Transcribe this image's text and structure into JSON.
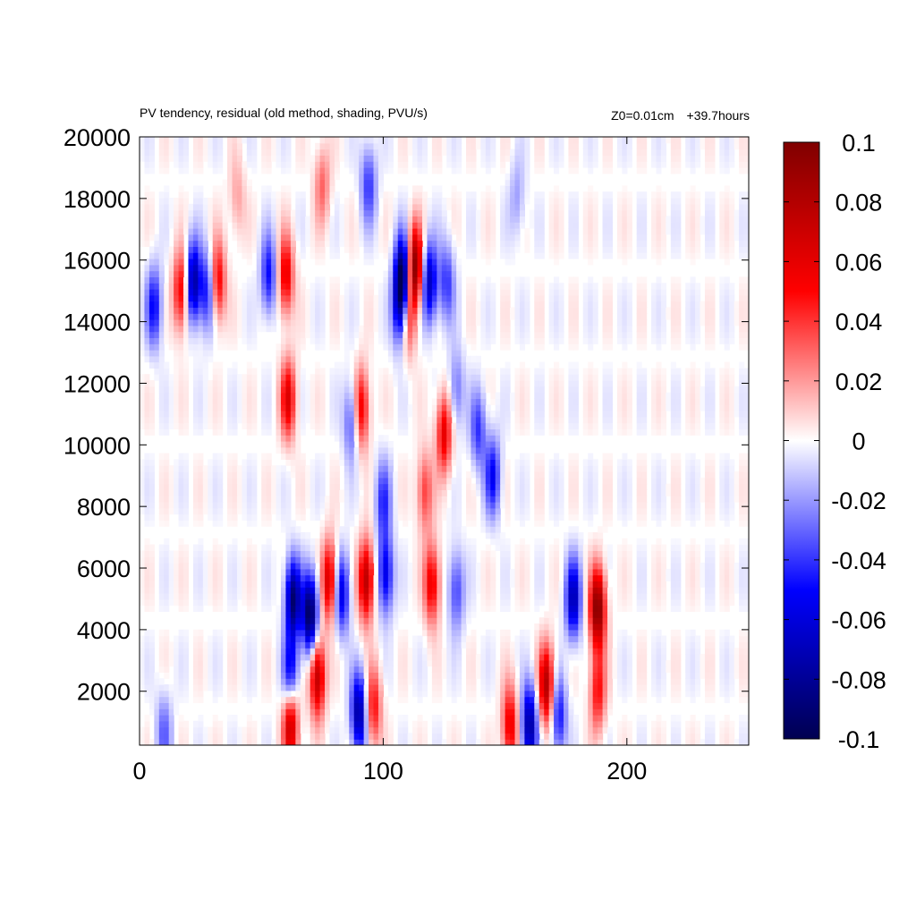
{
  "title": "PV tendency, residual (old method, shading, PVU/s)",
  "annotation_z0": "Z0=0.01cm",
  "annotation_time": "+39.7hours",
  "chart_data": {
    "type": "heatmap",
    "title": "PV tendency, residual (old method, shading, PVU/s)",
    "xlabel": "",
    "ylabel": "",
    "xlim": [
      0,
      250
    ],
    "ylim": [
      250,
      20000
    ],
    "x_ticks": [
      0,
      100,
      200
    ],
    "x_tick_labels": [
      "0",
      "100",
      "200"
    ],
    "y_ticks": [
      2000,
      4000,
      6000,
      8000,
      10000,
      12000,
      14000,
      16000,
      18000,
      20000
    ],
    "y_tick_labels": [
      "2000",
      "4000",
      "6000",
      "8000",
      "10000",
      "12000",
      "14000",
      "16000",
      "18000",
      "20000"
    ],
    "colorbar": {
      "min": -0.1,
      "max": 0.1,
      "ticks": [
        0.1,
        0.08,
        0.06,
        0.04,
        0.02,
        0,
        -0.02,
        -0.04,
        -0.06,
        -0.08,
        -0.1
      ],
      "tick_labels": [
        "0.1",
        "0.08",
        "0.06",
        "0.04",
        "0.02",
        "0",
        "-0.02",
        "-0.04",
        "-0.06",
        "-0.08",
        "-0.1"
      ],
      "colormap": "seismic (dark blue - blue - white - red - dark red)",
      "colors": [
        "#000050",
        "#0000ff",
        "#ffffff",
        "#ff0000",
        "#800000"
      ]
    },
    "features": [
      {
        "x": 22,
        "y": 15300,
        "value": -0.08
      },
      {
        "x": 17,
        "y": 15000,
        "value": 0.06
      },
      {
        "x": 32,
        "y": 15300,
        "value": 0.06
      },
      {
        "x": 28,
        "y": 15000,
        "value": -0.05
      },
      {
        "x": 6,
        "y": 14500,
        "value": -0.05
      },
      {
        "x": 60,
        "y": 15500,
        "value": 0.06
      },
      {
        "x": 53,
        "y": 15500,
        "value": -0.05
      },
      {
        "x": 108,
        "y": 15500,
        "value": -0.1
      },
      {
        "x": 113,
        "y": 15800,
        "value": 0.1
      },
      {
        "x": 119,
        "y": 15300,
        "value": -0.07
      },
      {
        "x": 126,
        "y": 15300,
        "value": -0.04
      },
      {
        "x": 107,
        "y": 14400,
        "value": -0.06
      },
      {
        "x": 110,
        "y": 14200,
        "value": 0.05
      },
      {
        "x": 61,
        "y": 11500,
        "value": 0.06
      },
      {
        "x": 91,
        "y": 11200,
        "value": 0.06
      },
      {
        "x": 87,
        "y": 10800,
        "value": -0.04
      },
      {
        "x": 125,
        "y": 10400,
        "value": 0.06
      },
      {
        "x": 130,
        "y": 11800,
        "value": -0.03
      },
      {
        "x": 145,
        "y": 9000,
        "value": -0.05
      },
      {
        "x": 139,
        "y": 10500,
        "value": -0.04
      },
      {
        "x": 100,
        "y": 8200,
        "value": -0.04
      },
      {
        "x": 117,
        "y": 8500,
        "value": 0.04
      },
      {
        "x": 70,
        "y": 4500,
        "value": -0.1
      },
      {
        "x": 63,
        "y": 5000,
        "value": -0.09
      },
      {
        "x": 83,
        "y": 5200,
        "value": -0.06
      },
      {
        "x": 93,
        "y": 5600,
        "value": 0.08
      },
      {
        "x": 78,
        "y": 5600,
        "value": 0.07
      },
      {
        "x": 101,
        "y": 5800,
        "value": -0.06
      },
      {
        "x": 120,
        "y": 5500,
        "value": 0.06
      },
      {
        "x": 130,
        "y": 5300,
        "value": -0.04
      },
      {
        "x": 188,
        "y": 4700,
        "value": 0.1
      },
      {
        "x": 178,
        "y": 5000,
        "value": -0.07
      },
      {
        "x": 73,
        "y": 2500,
        "value": 0.08
      },
      {
        "x": 62,
        "y": 2500,
        "value": -0.06
      },
      {
        "x": 62,
        "y": 1000,
        "value": 0.08
      },
      {
        "x": 90,
        "y": 1300,
        "value": -0.08
      },
      {
        "x": 96,
        "y": 1500,
        "value": 0.05
      },
      {
        "x": 167,
        "y": 2200,
        "value": 0.08
      },
      {
        "x": 160,
        "y": 900,
        "value": -0.08
      },
      {
        "x": 152,
        "y": 900,
        "value": 0.06
      },
      {
        "x": 172,
        "y": 1200,
        "value": -0.05
      },
      {
        "x": 188,
        "y": 2000,
        "value": 0.05
      },
      {
        "x": 10,
        "y": 700,
        "value": -0.03
      },
      {
        "x": 40,
        "y": 18000,
        "value": 0.02
      },
      {
        "x": 75,
        "y": 18500,
        "value": 0.03
      },
      {
        "x": 94,
        "y": 18500,
        "value": -0.04
      },
      {
        "x": 155,
        "y": 18000,
        "value": -0.02
      }
    ]
  }
}
